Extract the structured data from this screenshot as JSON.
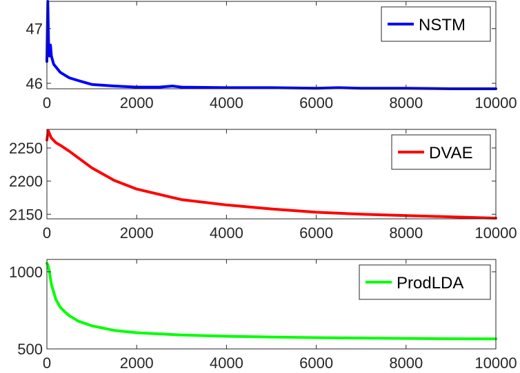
{
  "chart_data": [
    {
      "type": "line",
      "xlim": [
        0,
        10000
      ],
      "ylim": [
        45.9,
        47.5
      ],
      "xticks": [
        0,
        2000,
        4000,
        6000,
        8000,
        10000
      ],
      "yticks": [
        46,
        47
      ],
      "grid": false,
      "legend_position": "top-right",
      "series": [
        {
          "name": "NSTM",
          "color": "#0000ff",
          "x": [
            0,
            20,
            40,
            60,
            80,
            100,
            150,
            200,
            300,
            400,
            500,
            700,
            1000,
            1500,
            2000,
            2500,
            2800,
            3000,
            4000,
            5000,
            6000,
            6500,
            7000,
            8000,
            9000,
            10000
          ],
          "y": [
            46.4,
            47.6,
            46.6,
            46.5,
            46.7,
            46.5,
            46.35,
            46.3,
            46.2,
            46.15,
            46.1,
            46.05,
            45.98,
            45.95,
            45.93,
            45.93,
            45.95,
            45.93,
            45.92,
            45.92,
            45.91,
            45.92,
            45.91,
            45.91,
            45.9,
            45.9
          ]
        }
      ]
    },
    {
      "type": "line",
      "xlim": [
        0,
        10000
      ],
      "ylim": [
        2143,
        2278
      ],
      "xticks": [
        0,
        2000,
        4000,
        6000,
        8000,
        10000
      ],
      "yticks": [
        2150,
        2200,
        2250
      ],
      "grid": false,
      "legend_position": "top-right",
      "series": [
        {
          "name": "DVAE",
          "color": "#ff0000",
          "x": [
            0,
            30,
            60,
            100,
            200,
            300,
            500,
            1000,
            1500,
            2000,
            3000,
            4000,
            5000,
            6000,
            7000,
            8000,
            9000,
            10000
          ],
          "y": [
            2262,
            2276,
            2271,
            2265,
            2258,
            2254,
            2245,
            2220,
            2201,
            2188,
            2172,
            2164,
            2158,
            2153,
            2150,
            2148,
            2146,
            2144
          ]
        }
      ]
    },
    {
      "type": "line",
      "xlim": [
        0,
        10000
      ],
      "ylim": [
        500,
        1080
      ],
      "xticks": [
        0,
        2000,
        4000,
        6000,
        8000,
        10000
      ],
      "yticks": [
        500,
        1000
      ],
      "grid": false,
      "legend_position": "top-right",
      "series": [
        {
          "name": "ProdLDA",
          "color": "#00ff00",
          "x": [
            0,
            20,
            50,
            100,
            200,
            300,
            400,
            500,
            700,
            1000,
            1500,
            2000,
            3000,
            4000,
            5000,
            6000,
            7000,
            8000,
            9000,
            10000
          ],
          "y": [
            1055,
            1045,
            1010,
            920,
            820,
            770,
            740,
            715,
            680,
            650,
            620,
            605,
            590,
            582,
            577,
            573,
            570,
            568,
            566,
            565
          ]
        }
      ]
    }
  ]
}
